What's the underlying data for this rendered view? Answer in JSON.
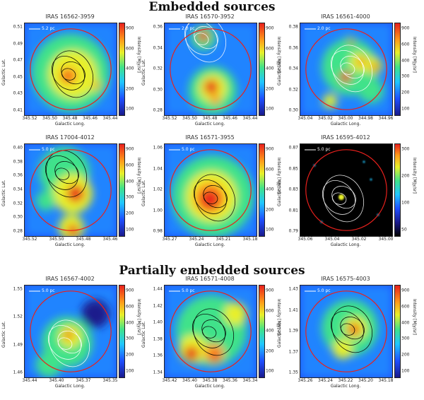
{
  "sections": {
    "embedded_title": "Embedded sources",
    "partial_title": "Partially embedded sources"
  },
  "colors": {
    "circle": "#e8201c",
    "contour_dark": "#000000",
    "contour_light": "#ffffff"
  },
  "panels": [
    {
      "id": "p1",
      "title": "IRAS 16562-3959",
      "scale": "5.2 pc",
      "xlabel": "Galactic Long.",
      "ylabel": "Galactic Lat.",
      "cbar_label": "Intensity [MJy/sr]",
      "xticks": [
        "345.52",
        "345.50",
        "345.48",
        "345.46",
        "345.44"
      ],
      "yticks": [
        "0.51",
        "0.49",
        "0.47",
        "0.45",
        "0.43",
        "0.41"
      ],
      "cbar_ticks": [
        "900",
        "600",
        "400",
        "200",
        "100"
      ],
      "dark": false,
      "contour": "dark"
    },
    {
      "id": "p2",
      "title": "IRAS 16570-3952",
      "scale": "2.0 pc",
      "xlabel": "Galactic Long.",
      "ylabel": "Galactic Lat.",
      "cbar_label": "Intensity [MJy/sr]",
      "xticks": [
        "345.52",
        "345.50",
        "345.48",
        "345.46",
        "345.44"
      ],
      "yticks": [
        "0.36",
        "0.34",
        "0.32",
        "0.30",
        "0.28"
      ],
      "cbar_ticks": [
        "900",
        "600",
        "400",
        "200",
        "100"
      ],
      "dark": false,
      "contour": "light"
    },
    {
      "id": "p3",
      "title": "IRAS 16561-4000",
      "scale": "2.0 pc",
      "xlabel": "Galactic Long.",
      "ylabel": "Galactic Lat.",
      "cbar_label": "Intensity [MJy/sr]",
      "xticks": [
        "345.04",
        "345.02",
        "345.00",
        "344.98",
        "344.96"
      ],
      "yticks": [
        "0.38",
        "0.36",
        "0.34",
        "0.32",
        "0.30"
      ],
      "cbar_ticks": [
        "900",
        "600",
        "400",
        "300",
        "200",
        "100"
      ],
      "dark": false,
      "contour": "light"
    },
    {
      "id": "p4",
      "title": "IRAS 17004-4012",
      "scale": "5.0 pc",
      "xlabel": "Galactic Long.",
      "ylabel": "Galactic Lat.",
      "cbar_label": "Intensity [MJy/sr]",
      "xticks": [
        "345.52",
        "345.50",
        "345.48",
        "345.46"
      ],
      "yticks": [
        "0.40",
        "0.38",
        "0.36",
        "0.34",
        "0.32",
        "0.30",
        "0.28"
      ],
      "cbar_ticks": [
        "900",
        "600",
        "400",
        "300",
        "200",
        "100"
      ],
      "dark": false,
      "contour": "dark"
    },
    {
      "id": "p5",
      "title": "IRAS 16571-3955",
      "scale": "5.0 pc",
      "xlabel": "Galactic Long.",
      "ylabel": "Galactic Lat.",
      "cbar_label": "Intensity [MJy/sr]",
      "xticks": [
        "345.27",
        "345.24",
        "345.21",
        "345.18"
      ],
      "yticks": [
        "1.06",
        "1.04",
        "1.02",
        "1.00",
        "0.98"
      ],
      "cbar_ticks": [
        "900",
        "600",
        "400",
        "200",
        "100"
      ],
      "dark": false,
      "contour": "dark"
    },
    {
      "id": "p6",
      "title": "IRAS 16595-4012",
      "scale": "5.0 pc",
      "xlabel": "Galactic Long.",
      "ylabel": "Galactic Lat.",
      "cbar_label": "Intensity [MJy/sr]",
      "xticks": [
        "345.06",
        "345.04",
        "345.02",
        "345.00"
      ],
      "yticks": [
        "0.87",
        "0.85",
        "0.83",
        "0.81",
        "0.79"
      ],
      "cbar_ticks": [
        "300",
        "200",
        "100",
        "50"
      ],
      "dark": true,
      "contour": "light"
    },
    {
      "id": "p7",
      "title": "IRAS 16567-4002",
      "scale": "5.0 pc",
      "xlabel": "Galactic Long.",
      "ylabel": "Galactic Lat.",
      "cbar_label": "Intensity [MJy/sr]",
      "xticks": [
        "345.44",
        "345.40",
        "345.37",
        "345.35"
      ],
      "yticks": [
        "1.55",
        "1.52",
        "1.49",
        "1.46"
      ],
      "cbar_ticks": [
        "900",
        "600",
        "400",
        "300",
        "200",
        "100"
      ],
      "dark": false,
      "contour": "light"
    },
    {
      "id": "p8",
      "title": "IRAS 16571-4008",
      "scale": "5.0 pc",
      "xlabel": "Galactic Long.",
      "ylabel": "Galactic Lat.",
      "cbar_label": "Intensity [MJy/sr]",
      "xticks": [
        "345.42",
        "345.40",
        "345.38",
        "345.36",
        "345.34"
      ],
      "yticks": [
        "1.44",
        "1.42",
        "1.40",
        "1.38",
        "1.36",
        "1.34"
      ],
      "cbar_ticks": [
        "900",
        "600",
        "400",
        "200",
        "100"
      ],
      "dark": false,
      "contour": "dark"
    },
    {
      "id": "p9",
      "title": "IRAS 16575-4003",
      "scale": "5.0 pc",
      "xlabel": "Galactic Long.",
      "ylabel": "Galactic Lat.",
      "cbar_label": "Intensity [MJy/sr]",
      "xticks": [
        "345.26",
        "345.24",
        "345.22",
        "345.20",
        "345.18"
      ],
      "yticks": [
        "1.43",
        "1.41",
        "1.39",
        "1.37",
        "1.35"
      ],
      "cbar_ticks": [
        "900",
        "600",
        "400",
        "300",
        "200",
        "100"
      ],
      "dark": false,
      "contour": "dark"
    }
  ]
}
